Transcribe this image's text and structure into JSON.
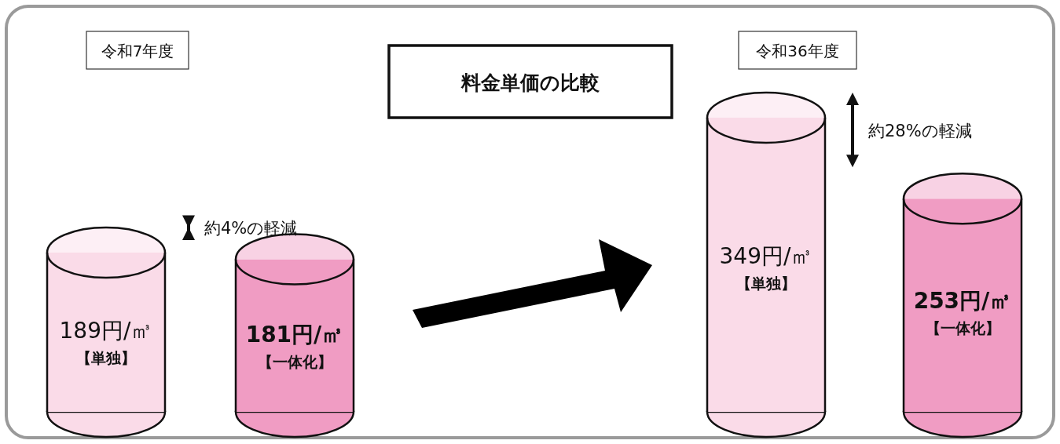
{
  "chart_data": [
    {
      "type": "bar",
      "subtitle": "令和7年度",
      "categories": [
        "【単独】",
        "【一体化】"
      ],
      "values": [
        189,
        181
      ],
      "colors": [
        "#fadbe8",
        "#f09cc3"
      ],
      "value_labels": [
        "189円/㎥",
        "181円/㎥"
      ],
      "annotations": [
        "約4%の軽減"
      ]
    },
    {
      "type": "other",
      "title": "料金単価の比較"
    },
    {
      "type": "bar",
      "subtitle": "令和36年度",
      "categories": [
        "【単独】",
        "【一体化】"
      ],
      "values": [
        349,
        253
      ],
      "colors": [
        "#fadbe8",
        "#f09cc3"
      ],
      "value_labels": [
        "349円/㎥",
        "253円/㎥"
      ],
      "annotations": [
        "約28%の軽減"
      ]
    }
  ]
}
